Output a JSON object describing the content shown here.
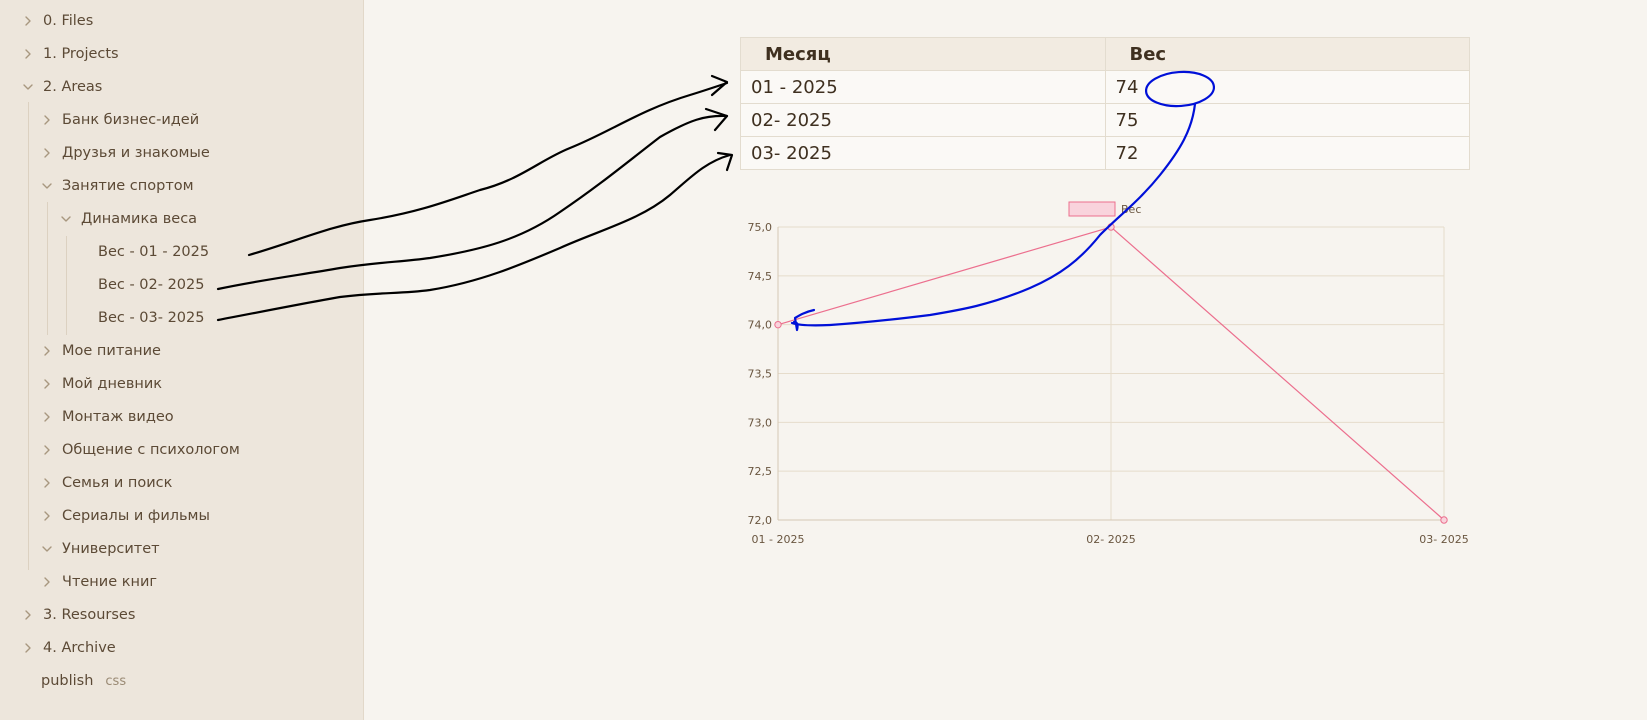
{
  "sidebar": {
    "items": [
      {
        "label": "0. Files",
        "chevron": "right",
        "level": 0
      },
      {
        "label": "1. Projects",
        "chevron": "right",
        "level": 0
      },
      {
        "label": "2. Areas",
        "chevron": "down",
        "level": 0
      },
      {
        "label": "Банк бизнес-идей",
        "chevron": "right",
        "level": 1
      },
      {
        "label": "Друзья и знакомые",
        "chevron": "right",
        "level": 1
      },
      {
        "label": "Занятие спортом",
        "chevron": "down",
        "level": 1
      },
      {
        "label": "Динамика веса",
        "chevron": "down",
        "level": 2
      },
      {
        "label": "Вес - 01 - 2025",
        "chevron": "none",
        "level": 3
      },
      {
        "label": "Вес - 02- 2025",
        "chevron": "none",
        "level": 3
      },
      {
        "label": "Вес - 03- 2025",
        "chevron": "none",
        "level": 3
      },
      {
        "label": "Мое питание",
        "chevron": "right",
        "level": 1
      },
      {
        "label": "Мой дневник",
        "chevron": "right",
        "level": 1
      },
      {
        "label": "Монтаж видео",
        "chevron": "right",
        "level": 1
      },
      {
        "label": "Общение с психологом",
        "chevron": "right",
        "level": 1
      },
      {
        "label": "Семья и поиск",
        "chevron": "right",
        "level": 1
      },
      {
        "label": "Сериалы и фильмы",
        "chevron": "right",
        "level": 1
      },
      {
        "label": "Университет",
        "chevron": "down",
        "level": 1
      },
      {
        "label": "Чтение книг",
        "chevron": "right",
        "level": 1
      },
      {
        "label": "3. Resourses",
        "chevron": "right",
        "level": 0
      },
      {
        "label": "4. Archive",
        "chevron": "right",
        "level": 0
      }
    ],
    "publish": {
      "label": "publish",
      "tag": "css"
    }
  },
  "table": {
    "headers": [
      "Месяц",
      "Вес"
    ],
    "rows": [
      [
        "01 - 2025",
        "74"
      ],
      [
        "02- 2025",
        "75"
      ],
      [
        "03- 2025",
        "72"
      ]
    ]
  },
  "colors": {
    "line": "#ec6f8e",
    "legend_fill": "#f9d3dc",
    "grid": "#e6dccb",
    "annotation_black": "#000000",
    "annotation_blue": "#0010d8"
  },
  "chart_data": {
    "type": "line",
    "x": [
      "01 - 2025",
      "02- 2025",
      "03- 2025"
    ],
    "series": [
      {
        "name": "Вес",
        "values": [
          74,
          75,
          72
        ]
      }
    ],
    "ylim": [
      72,
      75
    ],
    "yticks": [
      "75,0",
      "74,5",
      "74,0",
      "73,5",
      "73,0",
      "72,5",
      "72,0"
    ],
    "legend": "top-center",
    "grid": true
  }
}
